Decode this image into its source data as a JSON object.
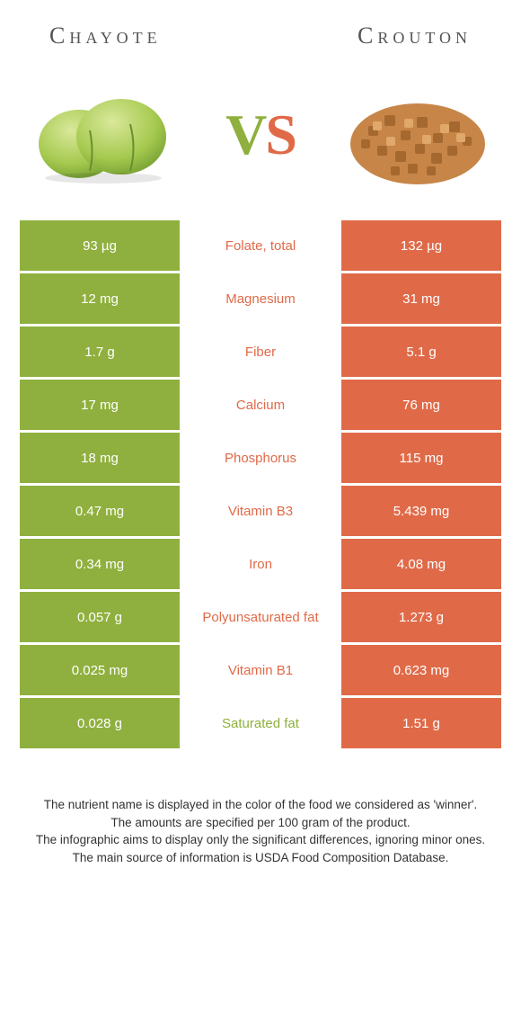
{
  "titles": {
    "left": "Chayote",
    "right": "Crouton"
  },
  "vs": {
    "v": "V",
    "s": "S"
  },
  "colors": {
    "left_bg": "#8fb03e",
    "right_bg": "#e06a48",
    "mid_left_winner": "#8fb03e",
    "mid_right_winner": "#e06a48",
    "text_light": "#ffffff"
  },
  "rows": [
    {
      "left": "93 µg",
      "label": "Folate, total",
      "right": "132 µg",
      "winner": "right"
    },
    {
      "left": "12 mg",
      "label": "Magnesium",
      "right": "31 mg",
      "winner": "right"
    },
    {
      "left": "1.7 g",
      "label": "Fiber",
      "right": "5.1 g",
      "winner": "right"
    },
    {
      "left": "17 mg",
      "label": "Calcium",
      "right": "76 mg",
      "winner": "right"
    },
    {
      "left": "18 mg",
      "label": "Phosphorus",
      "right": "115 mg",
      "winner": "right"
    },
    {
      "left": "0.47 mg",
      "label": "Vitamin B3",
      "right": "5.439 mg",
      "winner": "right"
    },
    {
      "left": "0.34 mg",
      "label": "Iron",
      "right": "4.08 mg",
      "winner": "right"
    },
    {
      "left": "0.057 g",
      "label": "Polyunsaturated fat",
      "right": "1.273 g",
      "winner": "right"
    },
    {
      "left": "0.025 mg",
      "label": "Vitamin B1",
      "right": "0.623 mg",
      "winner": "right"
    },
    {
      "left": "0.028 g",
      "label": "Saturated fat",
      "right": "1.51 g",
      "winner": "left"
    }
  ],
  "footer": {
    "l1": "The nutrient name is displayed in the color of the food we considered as 'winner'.",
    "l2": "The amounts are specified per 100 gram of the product.",
    "l3": "The infographic aims to display only the significant differences, ignoring minor ones.",
    "l4": "The main source of information is USDA Food Composition Database."
  }
}
